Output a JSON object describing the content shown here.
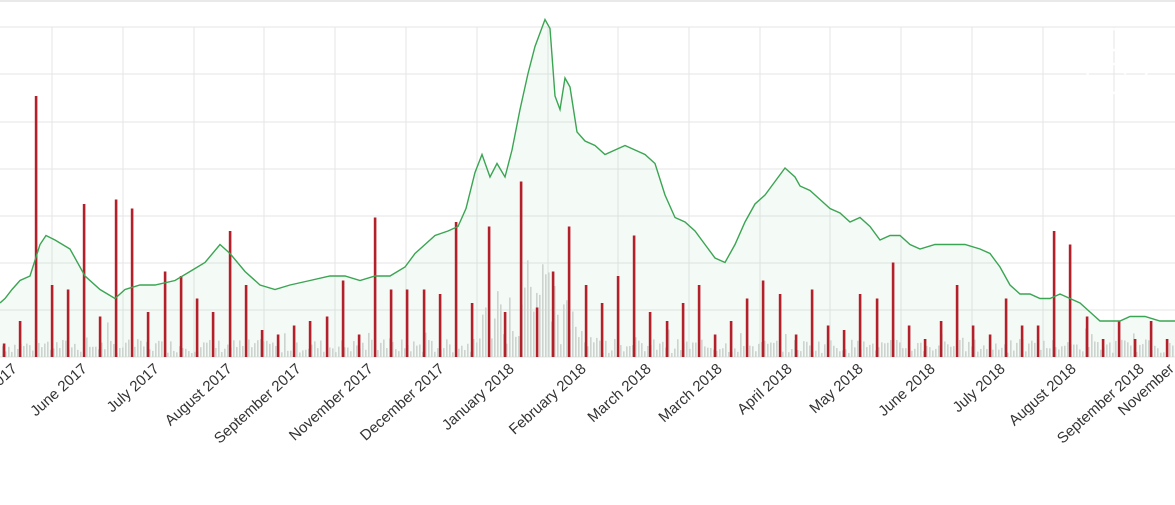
{
  "chart_data": {
    "type": "line",
    "title": "",
    "xlabel": "",
    "ylabel": "",
    "grid": true,
    "legend": "none",
    "x_ticks": [
      "2017",
      "June 2017",
      "July 2017",
      "August 2017",
      "September 2017",
      "November 2017",
      "December 2017",
      "January 2018",
      "February 2018",
      "March 2018",
      "March 2018",
      "April 2018",
      "May 2018",
      "June 2018",
      "July 2018",
      "August 2018",
      "September 2018",
      "November"
    ],
    "series": [
      {
        "kind": "line",
        "color": "#3aa552",
        "x": [
          0,
          5,
          12,
          20,
          30,
          40,
          46,
          55,
          70,
          85,
          100,
          115,
          125,
          140,
          155,
          175,
          190,
          205,
          220,
          230,
          245,
          260,
          275,
          290,
          310,
          330,
          345,
          360,
          375,
          390,
          405,
          415,
          425,
          435,
          448,
          458,
          466,
          475,
          482,
          490,
          497,
          505,
          512,
          520,
          528,
          535,
          540,
          545,
          550,
          555,
          560,
          565,
          570,
          577,
          585,
          595,
          605,
          615,
          625,
          635,
          645,
          655,
          665,
          675,
          685,
          695,
          705,
          715,
          725,
          735,
          745,
          755,
          765,
          775,
          785,
          795,
          800,
          810,
          820,
          830,
          840,
          850,
          860,
          870,
          880,
          890,
          900,
          910,
          920,
          935,
          950,
          965,
          980,
          990,
          1000,
          1010,
          1020,
          1030,
          1040,
          1050,
          1060,
          1070,
          1080,
          1090,
          1100,
          1110,
          1120,
          1130,
          1145,
          1160,
          1175
        ],
        "values": [
          12,
          13,
          15,
          17,
          18,
          25,
          27,
          26,
          24,
          18,
          15,
          13,
          15,
          16,
          16,
          17,
          19,
          21,
          25,
          23,
          19,
          16,
          15,
          16,
          17,
          18,
          18,
          17,
          18,
          18,
          20,
          23,
          25,
          27,
          28,
          29,
          33,
          41,
          45,
          40,
          43,
          40,
          46,
          55,
          63,
          69,
          72,
          75,
          73,
          58,
          55,
          62,
          60,
          50,
          48,
          47,
          45,
          46,
          47,
          46,
          45,
          43,
          36,
          31,
          30,
          28,
          25,
          22,
          21,
          25,
          30,
          34,
          36,
          39,
          42,
          40,
          38,
          37,
          35,
          33,
          32,
          30,
          31,
          29,
          26,
          27,
          27,
          25,
          24,
          25,
          25,
          25,
          24,
          23,
          20,
          16,
          14,
          14,
          13,
          13,
          14,
          13,
          12,
          10,
          8,
          8,
          8,
          9,
          9,
          8,
          8
        ]
      },
      {
        "kind": "bar",
        "color": "#b3202a",
        "x": [
          4,
          20,
          36,
          52,
          68,
          84,
          100,
          116,
          132,
          148,
          165,
          181,
          197,
          213,
          230,
          246,
          262,
          278,
          294,
          310,
          327,
          343,
          359,
          375,
          391,
          407,
          424,
          440,
          456,
          472,
          489,
          505,
          521,
          537,
          553,
          569,
          586,
          602,
          618,
          634,
          650,
          667,
          683,
          699,
          715,
          731,
          747,
          763,
          780,
          796,
          812,
          828,
          844,
          860,
          877,
          893,
          909,
          925,
          941,
          957,
          973,
          990,
          1006,
          1022,
          1038,
          1054,
          1070,
          1087,
          1103,
          1119,
          1135,
          1151,
          1167
        ],
        "values": [
          3,
          8,
          58,
          16,
          15,
          34,
          9,
          35,
          33,
          10,
          19,
          18,
          13,
          10,
          28,
          16,
          6,
          5,
          7,
          8,
          9,
          17,
          5,
          31,
          15,
          15,
          15,
          14,
          30,
          12,
          29,
          10,
          39,
          11,
          19,
          29,
          16,
          12,
          18,
          27,
          10,
          8,
          12,
          16,
          5,
          8,
          13,
          17,
          14,
          5,
          15,
          7,
          6,
          14,
          13,
          21,
          7,
          4,
          8,
          16,
          7,
          5,
          13,
          7,
          7,
          28,
          25,
          9,
          4,
          8,
          4,
          8,
          4
        ]
      }
    ]
  }
}
